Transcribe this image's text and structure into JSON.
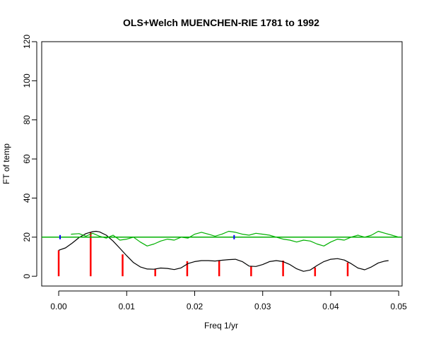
{
  "chart_data": {
    "type": "line",
    "title": "OLS+Welch MUENCHEN-RIE 1781 to 1992",
    "xlabel": "Freq 1/yr",
    "ylabel": "FT of temp",
    "xlim": [
      -0.0025,
      0.0505
    ],
    "ylim": [
      -5,
      120
    ],
    "x_ticks": [
      0.0,
      0.01,
      0.02,
      0.03,
      0.04,
      0.05
    ],
    "x_tick_labels": [
      "0.00",
      "0.01",
      "0.02",
      "0.03",
      "0.04",
      "0.05"
    ],
    "y_ticks": [
      0,
      20,
      40,
      60,
      80,
      100,
      120
    ],
    "y_tick_labels": [
      "0",
      "20",
      "40",
      "60",
      "80",
      "100",
      "120"
    ],
    "grid": false,
    "series": [
      {
        "kind": "impulses",
        "color": "#ff0000",
        "x": [
          0.0,
          0.0047,
          0.0094,
          0.0142,
          0.0189,
          0.0236,
          0.0283,
          0.033,
          0.0377,
          0.0425
        ],
        "values": [
          13.3,
          22.3,
          11.2,
          3.7,
          7.7,
          8.2,
          5.0,
          8.0,
          4.5,
          7.0
        ]
      },
      {
        "kind": "line",
        "color": "#000000",
        "x": [
          0.0,
          0.001,
          0.002,
          0.003,
          0.004,
          0.005,
          0.0055,
          0.006,
          0.007,
          0.008,
          0.009,
          0.01,
          0.011,
          0.012,
          0.013,
          0.014,
          0.015,
          0.016,
          0.017,
          0.018,
          0.019,
          0.02,
          0.021,
          0.022,
          0.023,
          0.024,
          0.025,
          0.026,
          0.027,
          0.028,
          0.029,
          0.03,
          0.031,
          0.032,
          0.033,
          0.034,
          0.035,
          0.036,
          0.037,
          0.038,
          0.039,
          0.04,
          0.041,
          0.042,
          0.043,
          0.044,
          0.045,
          0.046,
          0.047,
          0.048,
          0.0485
        ],
        "values": [
          13.3,
          14.5,
          17.0,
          19.8,
          21.8,
          22.8,
          23.0,
          22.7,
          21.0,
          18.0,
          14.3,
          10.5,
          7.0,
          4.8,
          3.7,
          3.6,
          4.2,
          4.0,
          3.4,
          4.3,
          6.5,
          7.5,
          8.0,
          8.0,
          7.8,
          8.2,
          8.5,
          8.7,
          7.5,
          5.2,
          5.0,
          6.0,
          7.5,
          8.0,
          7.5,
          6.0,
          3.8,
          2.5,
          3.2,
          5.5,
          7.5,
          8.7,
          9.0,
          8.3,
          6.5,
          4.2,
          3.3,
          4.8,
          6.8,
          7.8,
          8.0
        ]
      },
      {
        "kind": "hline",
        "color": "#00b000",
        "value": 20.0
      },
      {
        "kind": "line",
        "color": "#00b000",
        "x": [
          0.0018,
          0.003,
          0.004,
          0.005,
          0.006,
          0.007,
          0.008,
          0.009,
          0.01,
          0.011,
          0.012,
          0.013,
          0.014,
          0.015,
          0.016,
          0.017,
          0.018,
          0.019,
          0.02,
          0.021,
          0.022,
          0.023,
          0.024,
          0.025,
          0.026,
          0.027,
          0.028,
          0.029,
          0.03,
          0.031,
          0.032,
          0.033,
          0.034,
          0.035,
          0.036,
          0.037,
          0.038,
          0.039,
          0.04,
          0.041,
          0.042,
          0.043,
          0.044,
          0.045,
          0.046,
          0.047,
          0.048,
          0.049,
          0.05
        ],
        "values": [
          21.5,
          21.8,
          20.5,
          22.0,
          20.5,
          19.5,
          21.0,
          18.5,
          19.0,
          20.0,
          17.5,
          15.5,
          16.5,
          18.0,
          19.0,
          18.5,
          20.0,
          19.5,
          21.5,
          22.5,
          21.5,
          20.5,
          21.5,
          23.0,
          22.5,
          21.5,
          21.0,
          22.0,
          21.5,
          21.0,
          20.0,
          19.0,
          18.5,
          17.5,
          18.5,
          18.0,
          16.5,
          15.5,
          17.5,
          19.0,
          18.5,
          20.0,
          21.0,
          20.0,
          21.0,
          23.0,
          22.0,
          21.0,
          20.0
        ]
      },
      {
        "kind": "markers",
        "color": "#0000ff",
        "x": [
          0.0002,
          0.0258
        ],
        "values": [
          20.0,
          20.0
        ]
      }
    ]
  }
}
